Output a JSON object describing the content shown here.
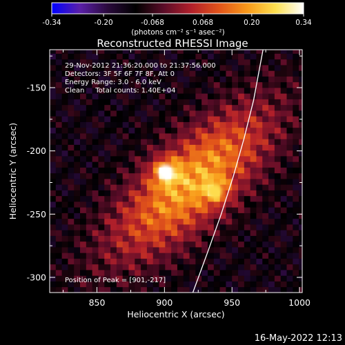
{
  "colorbar": {
    "ticks": [
      "-0.34",
      "-0.20",
      "-0.068",
      "0.068",
      "0.20",
      "0.34"
    ],
    "tick_values": [
      -0.34,
      -0.2,
      -0.068,
      0.068,
      0.2,
      0.34
    ],
    "range": [
      -0.34,
      0.34
    ],
    "unit_label": "(photons cm⁻² s⁻¹ asec⁻²)",
    "colormap": [
      "#0000ff",
      "#5a1fa8",
      "#2a0a3c",
      "#000000",
      "#5a0c28",
      "#b2202a",
      "#e2551a",
      "#f89a1a",
      "#fde050",
      "#ffffff"
    ]
  },
  "chart_data": {
    "type": "heatmap",
    "title": "Reconstructed RHESSI Image",
    "xlabel": "Heliocentric X (arcsec)",
    "ylabel": "Heliocentric Y (arcsec)",
    "xlim": [
      815,
      1002
    ],
    "ylim": [
      -312,
      -120
    ],
    "xticks": [
      850,
      900,
      950,
      1000
    ],
    "yticks": [
      -150,
      -200,
      -250,
      -300
    ],
    "sources": [
      {
        "x": 901,
        "y": -217,
        "flux": 0.34
      },
      {
        "x": 937,
        "y": -232,
        "flux": 0.26
      }
    ],
    "limb_curve": [
      [
        921,
        -312
      ],
      [
        932,
        -280
      ],
      [
        942,
        -250
      ],
      [
        951,
        -220
      ],
      [
        959,
        -190
      ],
      [
        966,
        -160
      ],
      [
        973,
        -120
      ]
    ],
    "annotations": [
      "29-Nov-2012 21:36:20.000 to 21:37:56.000",
      "Detectors: 3F 5F 6F 7F 8F, Att 0",
      "Energy Range: 3.0 - 6.0 keV",
      "Clean     Total counts: 1.40E+04"
    ],
    "peak_label": "Position of Peak = [901,-217]"
  },
  "timestamp": "16-May-2022 12:13"
}
